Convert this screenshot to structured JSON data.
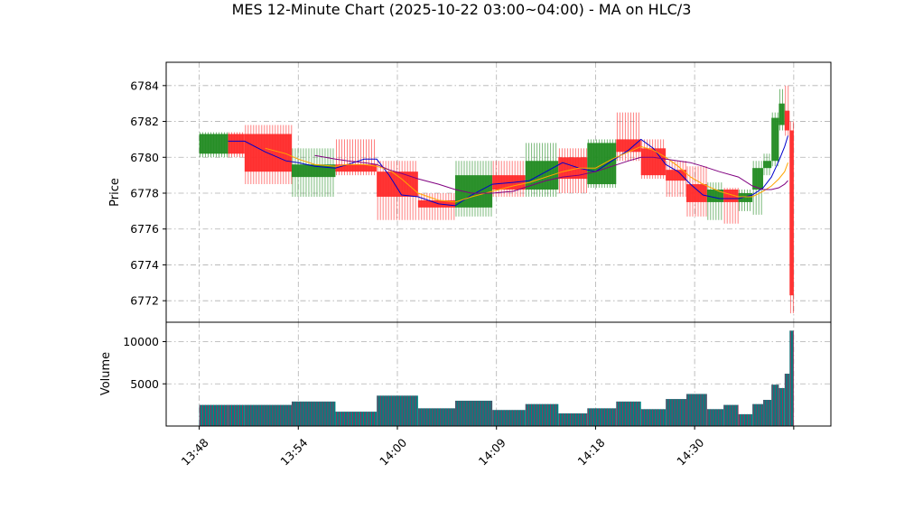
{
  "chart_data": {
    "type": "candlestick-volume",
    "title": "MES 12-Minute Chart (2025-10-22 03:00~04:00) - MA on HLC/3",
    "price_panel": {
      "ylabel": "Price",
      "ylim": [
        6770.8,
        6785.3
      ],
      "yticks": [
        6772,
        6774,
        6776,
        6778,
        6780,
        6782,
        6784
      ]
    },
    "volume_panel": {
      "ylabel": "Volume",
      "ylim": [
        0,
        12300
      ],
      "yticks": [
        5000,
        10000
      ]
    },
    "x_ticks": [
      {
        "label": "13:48",
        "x": 0
      },
      {
        "label": "13:54",
        "x": 12
      },
      {
        "label": "14:00",
        "x": 24
      },
      {
        "label": "14:09",
        "x": 36
      },
      {
        "label": "14:18",
        "x": 48
      },
      {
        "label": "14:30",
        "x": 60
      },
      {
        "label": "",
        "x": 72
      }
    ],
    "xlim": [
      -4,
      76.5
    ],
    "bars": [
      {
        "x0": 0,
        "x1": 3.5,
        "open": 6780.2,
        "high": 6781.4,
        "low": 6780.0,
        "close": 6781.3,
        "volume": 2500
      },
      {
        "x0": 3.5,
        "x1": 5.5,
        "open": 6781.3,
        "high": 6781.4,
        "low": 6780.0,
        "close": 6780.2,
        "volume": 2500
      },
      {
        "x0": 5.5,
        "x1": 11.2,
        "open": 6781.3,
        "high": 6781.8,
        "low": 6778.5,
        "close": 6779.2,
        "volume": 2500
      },
      {
        "x0": 11.2,
        "x1": 16.5,
        "open": 6778.9,
        "high": 6780.5,
        "low": 6777.8,
        "close": 6779.6,
        "volume": 2900
      },
      {
        "x0": 16.5,
        "x1": 21.5,
        "open": 6779.6,
        "high": 6781.0,
        "low": 6779.0,
        "close": 6779.2,
        "volume": 1700
      },
      {
        "x0": 21.5,
        "x1": 26.5,
        "open": 6779.2,
        "high": 6779.8,
        "low": 6776.5,
        "close": 6777.8,
        "volume": 3600
      },
      {
        "x0": 26.5,
        "x1": 31.0,
        "open": 6777.6,
        "high": 6778.0,
        "low": 6776.5,
        "close": 6777.2,
        "volume": 2100
      },
      {
        "x0": 31.0,
        "x1": 35.5,
        "open": 6777.2,
        "high": 6779.8,
        "low": 6776.7,
        "close": 6779.0,
        "volume": 3000
      },
      {
        "x0": 35.5,
        "x1": 39.5,
        "open": 6779.0,
        "high": 6779.8,
        "low": 6777.8,
        "close": 6778.2,
        "volume": 1900
      },
      {
        "x0": 39.5,
        "x1": 43.5,
        "open": 6778.2,
        "high": 6780.8,
        "low": 6777.8,
        "close": 6779.8,
        "volume": 2600
      },
      {
        "x0": 43.5,
        "x1": 47.0,
        "open": 6780.0,
        "high": 6780.5,
        "low": 6778.0,
        "close": 6778.8,
        "volume": 1500
      },
      {
        "x0": 47.0,
        "x1": 50.5,
        "open": 6778.5,
        "high": 6781.0,
        "low": 6778.3,
        "close": 6780.8,
        "volume": 2100
      },
      {
        "x0": 50.5,
        "x1": 53.5,
        "open": 6781.0,
        "high": 6782.5,
        "low": 6779.8,
        "close": 6780.3,
        "volume": 2900
      },
      {
        "x0": 53.5,
        "x1": 56.5,
        "open": 6780.5,
        "high": 6781.0,
        "low": 6778.8,
        "close": 6779.0,
        "volume": 2000
      },
      {
        "x0": 56.5,
        "x1": 59.0,
        "open": 6779.3,
        "high": 6779.8,
        "low": 6777.8,
        "close": 6778.7,
        "volume": 3200
      },
      {
        "x0": 59.0,
        "x1": 61.5,
        "open": 6778.5,
        "high": 6779.5,
        "low": 6776.7,
        "close": 6777.5,
        "volume": 3800
      },
      {
        "x0": 61.5,
        "x1": 63.5,
        "open": 6777.5,
        "high": 6778.6,
        "low": 6776.5,
        "close": 6778.2,
        "volume": 2000
      },
      {
        "x0": 63.5,
        "x1": 65.3,
        "open": 6778.2,
        "high": 6778.3,
        "low": 6776.3,
        "close": 6777.5,
        "volume": 2500
      },
      {
        "x0": 65.3,
        "x1": 67.0,
        "open": 6777.5,
        "high": 6778.2,
        "low": 6777.0,
        "close": 6778.0,
        "volume": 1400
      },
      {
        "x0": 67.0,
        "x1": 68.3,
        "open": 6778.2,
        "high": 6779.8,
        "low": 6776.8,
        "close": 6779.4,
        "volume": 2600
      },
      {
        "x0": 68.3,
        "x1": 69.3,
        "open": 6779.4,
        "high": 6780.2,
        "low": 6779.0,
        "close": 6779.8,
        "volume": 3100
      },
      {
        "x0": 69.3,
        "x1": 70.2,
        "open": 6779.8,
        "high": 6782.5,
        "low": 6779.5,
        "close": 6782.2,
        "volume": 4900
      },
      {
        "x0": 70.2,
        "x1": 70.9,
        "open": 6781.8,
        "high": 6783.8,
        "low": 6781.5,
        "close": 6783.0,
        "volume": 4500
      },
      {
        "x0": 70.9,
        "x1": 71.5,
        "open": 6782.6,
        "high": 6784.0,
        "low": 6781.2,
        "close": 6781.5,
        "volume": 6200
      },
      {
        "x0": 71.5,
        "x1": 72.0,
        "open": 6781.5,
        "high": 6782.0,
        "low": 6771.3,
        "close": 6772.3,
        "volume": 11300
      }
    ],
    "moving_averages": [
      {
        "color": "#0000cc",
        "x": [
          3.5,
          5.5,
          8,
          10.5,
          12,
          14,
          16.5,
          18,
          20,
          21.5,
          23,
          24.5,
          26.5,
          29,
          31,
          33,
          35.5,
          38,
          40,
          42,
          44,
          46,
          48,
          50,
          52,
          53.5,
          55,
          56.5,
          58,
          59.5,
          61,
          63,
          65.3,
          67,
          68.3,
          69.3,
          70.2,
          70.9,
          71.3
        ],
        "y": [
          6780.9,
          6780.9,
          6780.3,
          6779.8,
          6779.7,
          6779.5,
          6779.4,
          6779.6,
          6779.9,
          6779.9,
          6779.0,
          6777.9,
          6777.8,
          6777.4,
          6777.3,
          6777.9,
          6778.5,
          6778.6,
          6778.7,
          6779.2,
          6779.7,
          6779.4,
          6779.2,
          6779.8,
          6780.4,
          6781.0,
          6780.5,
          6779.6,
          6779.2,
          6778.5,
          6777.9,
          6777.7,
          6777.7,
          6777.9,
          6778.3,
          6778.9,
          6779.8,
          6780.6,
          6781.2
        ]
      },
      {
        "color": "#ffa500",
        "x": [
          8,
          10.5,
          12,
          14,
          16.5,
          18,
          20,
          21.5,
          23,
          24.5,
          26.5,
          29,
          31,
          33,
          35.5,
          38,
          40,
          42,
          44,
          46,
          48,
          50,
          52,
          53.5,
          55,
          56.5,
          58,
          59.5,
          61,
          63,
          65.3,
          67,
          68.3,
          69.3,
          70.2,
          70.9,
          71.3
        ],
        "y": [
          6780.5,
          6780.2,
          6779.9,
          6779.6,
          6779.5,
          6779.6,
          6779.6,
          6779.5,
          6779.3,
          6778.8,
          6778.0,
          6777.6,
          6777.5,
          6777.8,
          6778.1,
          6778.4,
          6778.6,
          6778.9,
          6779.2,
          6779.4,
          6779.4,
          6779.9,
          6780.3,
          6780.6,
          6780.4,
          6780.0,
          6779.5,
          6778.9,
          6778.5,
          6778.1,
          6777.8,
          6777.8,
          6778.1,
          6778.4,
          6778.8,
          6779.2,
          6779.7
        ]
      },
      {
        "color": "#800080",
        "x": [
          14,
          16.5,
          18,
          20,
          21.5,
          23,
          24.5,
          26.5,
          29,
          31,
          33,
          35.5,
          38,
          40,
          42,
          44,
          46,
          48,
          50,
          52,
          53.5,
          55,
          56.5,
          58,
          59.5,
          61,
          63,
          65.3,
          67,
          68.3,
          69.3,
          70.2,
          70.9,
          71.3
        ],
        "y": [
          6780.1,
          6779.9,
          6779.8,
          6779.7,
          6779.6,
          6779.3,
          6779.1,
          6778.8,
          6778.5,
          6778.2,
          6778.0,
          6778.0,
          6778.1,
          6778.4,
          6778.7,
          6778.9,
          6779.0,
          6779.2,
          6779.5,
          6779.8,
          6780.0,
          6780.0,
          6779.9,
          6779.8,
          6779.7,
          6779.5,
          6779.2,
          6778.9,
          6778.4,
          6778.2,
          6778.2,
          6778.3,
          6778.5,
          6778.7
        ]
      }
    ],
    "colors": {
      "up": "#228b22",
      "down": "#ff2a2a",
      "volume_fill": "#008080",
      "volume_edge": "#b22255",
      "grid": "#b0b0b0"
    }
  }
}
